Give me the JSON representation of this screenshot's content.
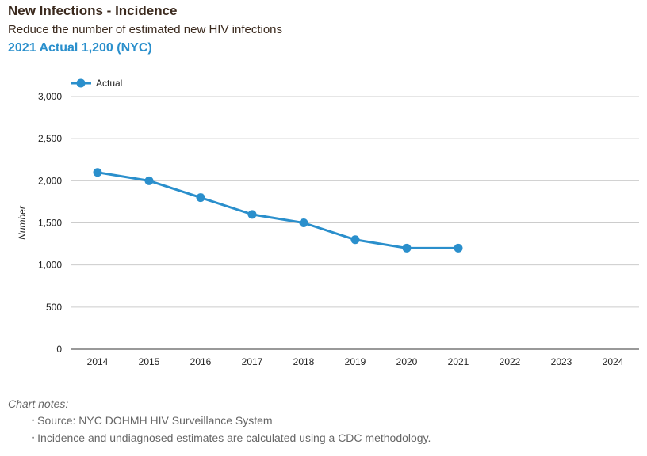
{
  "header": {
    "title": "New Infections - Incidence",
    "subtitle": "Reduce the number of estimated new HIV infections",
    "headline": "2021 Actual 1,200 (NYC)"
  },
  "notes": {
    "title": "Chart notes:",
    "items": [
      "Source: NYC DOHMH HIV Surveillance System",
      "Incidence and undiagnosed estimates are calculated using a CDC methodology."
    ]
  },
  "chart_data": {
    "type": "line",
    "title": "",
    "xlabel": "",
    "ylabel": "Number",
    "categories": [
      "2014",
      "2015",
      "2016",
      "2017",
      "2018",
      "2019",
      "2020",
      "2021",
      "2022",
      "2023",
      "2024"
    ],
    "series": [
      {
        "name": "Actual",
        "color": "#2a8fcc",
        "values": [
          2100,
          2000,
          1800,
          1600,
          1500,
          1300,
          1200,
          1200,
          null,
          null,
          null
        ]
      }
    ],
    "ylim": [
      0,
      3000
    ],
    "yticks": [
      0,
      500,
      1000,
      1500,
      2000,
      2500,
      3000
    ],
    "ytick_labels": [
      "0",
      "500",
      "1,000",
      "1,500",
      "2,000",
      "2,500",
      "3,000"
    ],
    "grid": true,
    "legend": "top-left"
  }
}
